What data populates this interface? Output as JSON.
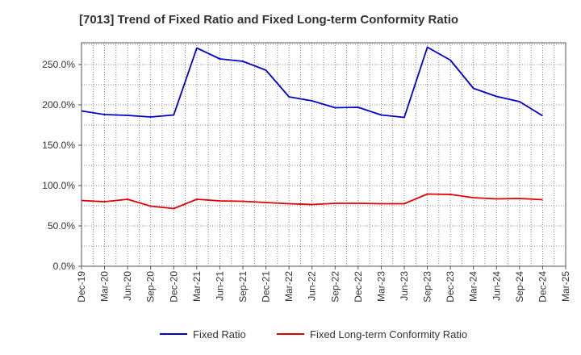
{
  "chart_data": {
    "type": "line",
    "title": "[7013]  Trend of Fixed Ratio and Fixed Long-term Conformity Ratio",
    "xlabel": "",
    "ylabel": "",
    "x_tick_labels": [
      "Dec-19",
      "Mar-20",
      "Jun-20",
      "Sep-20",
      "Dec-20",
      "Mar-21",
      "Jun-21",
      "Sep-21",
      "Dec-21",
      "Mar-22",
      "Jun-22",
      "Sep-22",
      "Dec-22",
      "Mar-23",
      "Jun-23",
      "Sep-23",
      "Dec-23",
      "Mar-24",
      "Jun-24",
      "Sep-24",
      "Dec-24",
      "Mar-25"
    ],
    "y_tick_labels": [
      "0.0%",
      "50.0%",
      "100.0%",
      "150.0%",
      "200.0%",
      "250.0%"
    ],
    "y_ticks": [
      0,
      50,
      100,
      150,
      200,
      250
    ],
    "ylim": [
      0,
      277
    ],
    "x": [
      "Dec-19",
      "Mar-20",
      "Jun-20",
      "Sep-20",
      "Dec-20",
      "Mar-21",
      "Jun-21",
      "Sep-21",
      "Dec-21",
      "Mar-22",
      "Jun-22",
      "Sep-22",
      "Dec-22",
      "Mar-23",
      "Jun-23",
      "Sep-23",
      "Dec-23",
      "Mar-24",
      "Jun-24",
      "Sep-24",
      "Dec-24"
    ],
    "grid": true,
    "legend_position": "bottom",
    "series": [
      {
        "name": "Fixed Ratio",
        "color": "#0000cc",
        "values": [
          192.5,
          188.0,
          187.0,
          185.0,
          187.5,
          270.5,
          257.0,
          254.0,
          243.0,
          210.0,
          205.0,
          196.5,
          197.0,
          187.5,
          184.5,
          271.5,
          255.5,
          220.5,
          210.5,
          204.0,
          186.5
        ]
      },
      {
        "name": "Fixed Long-term Conformity Ratio",
        "color": "#e00000",
        "values": [
          81.5,
          80.0,
          83.0,
          74.5,
          71.5,
          83.0,
          81.0,
          80.5,
          79.0,
          77.5,
          76.5,
          78.0,
          78.0,
          77.5,
          77.5,
          89.5,
          89.0,
          85.0,
          83.5,
          84.0,
          82.5
        ]
      }
    ]
  }
}
